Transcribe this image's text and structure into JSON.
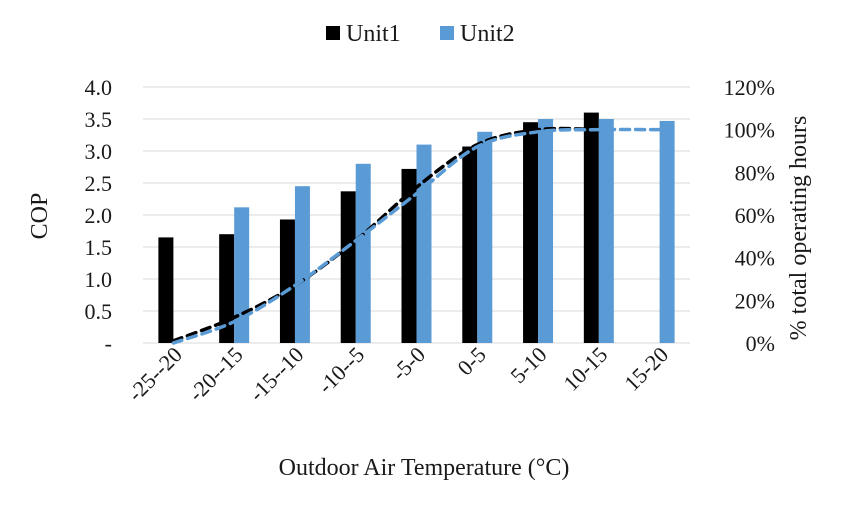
{
  "chart_data": {
    "type": "bar",
    "categories": [
      "-25--20",
      "-20--15",
      "-15--10",
      "-10--5",
      "-5-0",
      "0-5",
      "5-10",
      "10-15",
      "15-20"
    ],
    "xlabel": "Outdoor Air Temperature (°C)",
    "ylabel": "COP",
    "y2label": "% total operating hours",
    "ylim": [
      0,
      4.0
    ],
    "y_ticks": [
      "-",
      "0.5",
      "1.0",
      "1.5",
      "2.0",
      "2.5",
      "3.0",
      "3.5",
      "4.0"
    ],
    "y2lim": [
      0,
      1.2
    ],
    "y2_ticks": [
      "0%",
      "20%",
      "40%",
      "60%",
      "80%",
      "100%",
      "120%"
    ],
    "grid": true,
    "legend": "top-center",
    "series": [
      {
        "name": "Unit1",
        "type": "bar",
        "color": "#000000",
        "values": [
          1.65,
          1.7,
          1.93,
          2.37,
          2.72,
          3.07,
          3.45,
          3.6,
          null
        ]
      },
      {
        "name": "Unit2",
        "type": "bar",
        "color": "#5b9bd5",
        "values": [
          null,
          2.12,
          2.45,
          2.8,
          3.1,
          3.3,
          3.5,
          3.5,
          3.47
        ]
      },
      {
        "type": "line",
        "axis": "y2",
        "color": "#000000",
        "dash": true,
        "values": [
          0.01,
          0.12,
          0.27,
          0.48,
          0.73,
          0.93,
          1.0,
          1.0,
          null
        ]
      },
      {
        "type": "line",
        "axis": "y2",
        "color": "#5b9bd5",
        "dash": true,
        "values": [
          0.0,
          0.1,
          0.27,
          0.48,
          0.7,
          0.92,
          0.99,
          1.0,
          1.0
        ]
      }
    ]
  }
}
